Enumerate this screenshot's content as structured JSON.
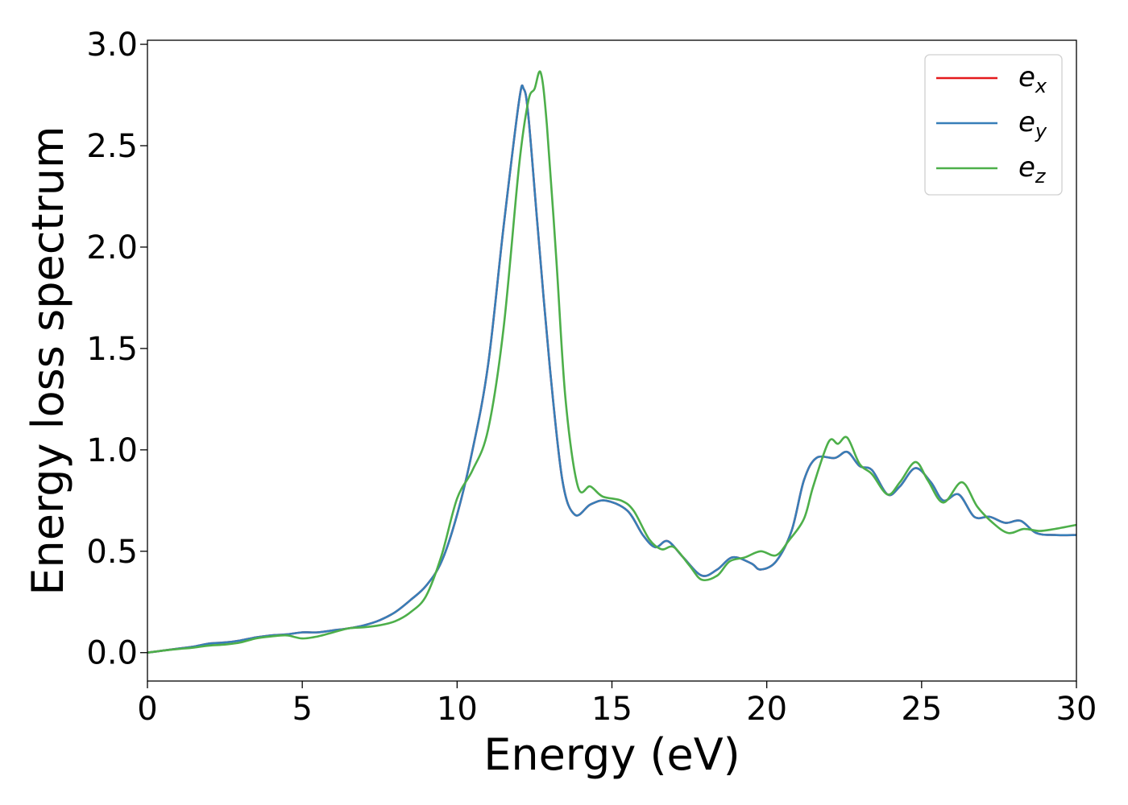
{
  "chart_data": {
    "type": "line",
    "xlabel": "Energy (eV)",
    "ylabel": "Energy loss spectrum",
    "xlim": [
      0,
      30
    ],
    "ylim": [
      -0.14,
      3.02
    ],
    "xticks": [
      0,
      5,
      10,
      15,
      20,
      25,
      30
    ],
    "yticks": [
      0.0,
      0.5,
      1.0,
      1.5,
      2.0,
      2.5,
      3.0
    ],
    "xtick_labels": [
      "0",
      "5",
      "10",
      "15",
      "20",
      "25",
      "30"
    ],
    "ytick_labels": [
      "0.0",
      "0.5",
      "1.0",
      "1.5",
      "2.0",
      "2.5",
      "3.0"
    ],
    "grid": false,
    "legend_position": "top-right",
    "series": [
      {
        "name": "e_x",
        "label_base": "e",
        "label_sub": "x",
        "color": "#e41a1c",
        "points": [
          [
            0,
            0.0
          ],
          [
            0.5,
            0.01
          ],
          [
            1,
            0.02
          ],
          [
            1.5,
            0.03
          ],
          [
            2,
            0.045
          ],
          [
            2.5,
            0.05
          ],
          [
            3,
            0.06
          ],
          [
            3.5,
            0.075
          ],
          [
            4,
            0.085
          ],
          [
            4.5,
            0.09
          ],
          [
            5,
            0.1
          ],
          [
            5.5,
            0.1
          ],
          [
            6,
            0.11
          ],
          [
            6.5,
            0.12
          ],
          [
            7,
            0.135
          ],
          [
            7.5,
            0.16
          ],
          [
            8,
            0.2
          ],
          [
            8.5,
            0.26
          ],
          [
            9,
            0.33
          ],
          [
            9.5,
            0.45
          ],
          [
            10,
            0.68
          ],
          [
            10.5,
            1.0
          ],
          [
            11,
            1.42
          ],
          [
            11.5,
            2.1
          ],
          [
            12,
            2.72
          ],
          [
            12.15,
            2.78
          ],
          [
            12.3,
            2.65
          ],
          [
            12.6,
            2.1
          ],
          [
            13,
            1.4
          ],
          [
            13.4,
            0.85
          ],
          [
            13.8,
            0.68
          ],
          [
            14.3,
            0.73
          ],
          [
            14.8,
            0.75
          ],
          [
            15.5,
            0.7
          ],
          [
            16,
            0.58
          ],
          [
            16.4,
            0.52
          ],
          [
            16.8,
            0.55
          ],
          [
            17.3,
            0.47
          ],
          [
            17.9,
            0.38
          ],
          [
            18.4,
            0.41
          ],
          [
            18.9,
            0.47
          ],
          [
            19.5,
            0.44
          ],
          [
            19.8,
            0.41
          ],
          [
            20.3,
            0.45
          ],
          [
            20.8,
            0.6
          ],
          [
            21.2,
            0.85
          ],
          [
            21.6,
            0.96
          ],
          [
            22.2,
            0.96
          ],
          [
            22.6,
            0.99
          ],
          [
            23,
            0.92
          ],
          [
            23.4,
            0.9
          ],
          [
            23.9,
            0.78
          ],
          [
            24.3,
            0.82
          ],
          [
            24.8,
            0.91
          ],
          [
            25.3,
            0.84
          ],
          [
            25.7,
            0.75
          ],
          [
            26.2,
            0.78
          ],
          [
            26.7,
            0.67
          ],
          [
            27.2,
            0.67
          ],
          [
            27.7,
            0.64
          ],
          [
            28.2,
            0.65
          ],
          [
            28.7,
            0.59
          ],
          [
            29.3,
            0.58
          ],
          [
            30,
            0.58
          ]
        ]
      },
      {
        "name": "e_y",
        "label_base": "e",
        "label_sub": "y",
        "color": "#377eb8",
        "points": [
          [
            0,
            0.0
          ],
          [
            0.5,
            0.01
          ],
          [
            1,
            0.02
          ],
          [
            1.5,
            0.03
          ],
          [
            2,
            0.045
          ],
          [
            2.5,
            0.05
          ],
          [
            3,
            0.06
          ],
          [
            3.5,
            0.075
          ],
          [
            4,
            0.085
          ],
          [
            4.5,
            0.09
          ],
          [
            5,
            0.1
          ],
          [
            5.5,
            0.1
          ],
          [
            6,
            0.11
          ],
          [
            6.5,
            0.12
          ],
          [
            7,
            0.135
          ],
          [
            7.5,
            0.16
          ],
          [
            8,
            0.2
          ],
          [
            8.5,
            0.26
          ],
          [
            9,
            0.33
          ],
          [
            9.5,
            0.45
          ],
          [
            10,
            0.68
          ],
          [
            10.5,
            1.0
          ],
          [
            11,
            1.42
          ],
          [
            11.5,
            2.1
          ],
          [
            12,
            2.72
          ],
          [
            12.15,
            2.78
          ],
          [
            12.3,
            2.65
          ],
          [
            12.6,
            2.1
          ],
          [
            13,
            1.4
          ],
          [
            13.4,
            0.85
          ],
          [
            13.8,
            0.68
          ],
          [
            14.3,
            0.73
          ],
          [
            14.8,
            0.75
          ],
          [
            15.5,
            0.7
          ],
          [
            16,
            0.58
          ],
          [
            16.4,
            0.52
          ],
          [
            16.8,
            0.55
          ],
          [
            17.3,
            0.47
          ],
          [
            17.9,
            0.38
          ],
          [
            18.4,
            0.41
          ],
          [
            18.9,
            0.47
          ],
          [
            19.5,
            0.44
          ],
          [
            19.8,
            0.41
          ],
          [
            20.3,
            0.45
          ],
          [
            20.8,
            0.6
          ],
          [
            21.2,
            0.85
          ],
          [
            21.6,
            0.96
          ],
          [
            22.2,
            0.96
          ],
          [
            22.6,
            0.99
          ],
          [
            23,
            0.92
          ],
          [
            23.4,
            0.9
          ],
          [
            23.9,
            0.78
          ],
          [
            24.3,
            0.82
          ],
          [
            24.8,
            0.91
          ],
          [
            25.3,
            0.84
          ],
          [
            25.7,
            0.75
          ],
          [
            26.2,
            0.78
          ],
          [
            26.7,
            0.67
          ],
          [
            27.2,
            0.67
          ],
          [
            27.7,
            0.64
          ],
          [
            28.2,
            0.65
          ],
          [
            28.7,
            0.59
          ],
          [
            29.3,
            0.58
          ],
          [
            30,
            0.58
          ]
        ]
      },
      {
        "name": "e_z",
        "label_base": "e",
        "label_sub": "z",
        "color": "#4daf4a",
        "points": [
          [
            0,
            0.0
          ],
          [
            0.5,
            0.01
          ],
          [
            1,
            0.018
          ],
          [
            1.5,
            0.025
          ],
          [
            2,
            0.035
          ],
          [
            2.5,
            0.04
          ],
          [
            3,
            0.05
          ],
          [
            3.5,
            0.07
          ],
          [
            4,
            0.08
          ],
          [
            4.5,
            0.085
          ],
          [
            5,
            0.07
          ],
          [
            5.5,
            0.08
          ],
          [
            6,
            0.1
          ],
          [
            6.5,
            0.12
          ],
          [
            7,
            0.125
          ],
          [
            7.5,
            0.135
          ],
          [
            8,
            0.155
          ],
          [
            8.5,
            0.2
          ],
          [
            9,
            0.28
          ],
          [
            9.5,
            0.48
          ],
          [
            10,
            0.76
          ],
          [
            10.5,
            0.9
          ],
          [
            11,
            1.1
          ],
          [
            11.5,
            1.6
          ],
          [
            12,
            2.4
          ],
          [
            12.3,
            2.72
          ],
          [
            12.5,
            2.78
          ],
          [
            12.7,
            2.86
          ],
          [
            12.9,
            2.6
          ],
          [
            13.2,
            1.95
          ],
          [
            13.5,
            1.25
          ],
          [
            13.9,
            0.82
          ],
          [
            14.3,
            0.82
          ],
          [
            14.7,
            0.77
          ],
          [
            15.3,
            0.75
          ],
          [
            15.7,
            0.7
          ],
          [
            16.2,
            0.56
          ],
          [
            16.6,
            0.51
          ],
          [
            17,
            0.52
          ],
          [
            17.5,
            0.43
          ],
          [
            17.9,
            0.36
          ],
          [
            18.4,
            0.38
          ],
          [
            18.8,
            0.45
          ],
          [
            19.3,
            0.47
          ],
          [
            19.8,
            0.5
          ],
          [
            20.3,
            0.48
          ],
          [
            20.7,
            0.55
          ],
          [
            21.2,
            0.66
          ],
          [
            21.5,
            0.82
          ],
          [
            22,
            1.04
          ],
          [
            22.3,
            1.03
          ],
          [
            22.6,
            1.06
          ],
          [
            23,
            0.93
          ],
          [
            23.4,
            0.88
          ],
          [
            23.9,
            0.78
          ],
          [
            24.3,
            0.84
          ],
          [
            24.8,
            0.94
          ],
          [
            25.2,
            0.85
          ],
          [
            25.7,
            0.74
          ],
          [
            26.3,
            0.84
          ],
          [
            26.8,
            0.72
          ],
          [
            27.3,
            0.64
          ],
          [
            27.8,
            0.59
          ],
          [
            28.3,
            0.61
          ],
          [
            28.8,
            0.6
          ],
          [
            29.3,
            0.61
          ],
          [
            30,
            0.63
          ]
        ]
      }
    ]
  }
}
